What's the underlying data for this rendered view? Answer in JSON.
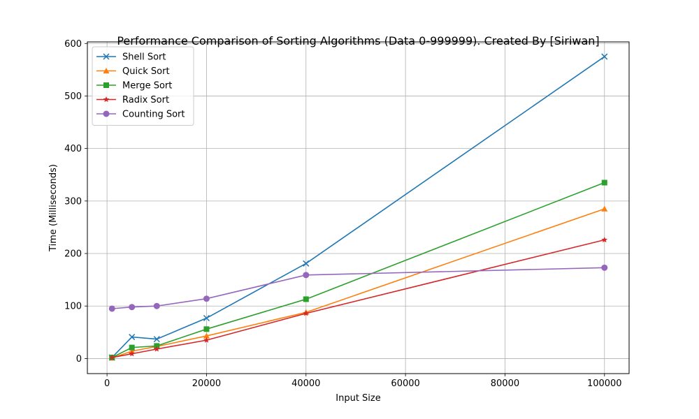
{
  "chart_data": {
    "type": "line",
    "title": "Performance Comparison of Sorting Algorithms (Data 0-999999). Created By [Siriwan]",
    "xlabel": "Input Size",
    "ylabel": "Time (Milliseconds)",
    "xlim": [
      -3950,
      104950
    ],
    "ylim": [
      -28.7,
      603
    ],
    "x_ticks": [
      0,
      20000,
      40000,
      60000,
      80000,
      100000
    ],
    "x_tick_labels": [
      "0",
      "20000",
      "40000",
      "60000",
      "80000",
      "100000"
    ],
    "y_ticks": [
      0,
      100,
      200,
      300,
      400,
      500,
      600
    ],
    "y_tick_labels": [
      "0",
      "100",
      "200",
      "300",
      "400",
      "500",
      "600"
    ],
    "grid": true,
    "legend_position": "top-left",
    "x": [
      1000,
      5000,
      10000,
      20000,
      40000,
      100000
    ],
    "series": [
      {
        "name": "Shell Sort",
        "color": "#1f77b4",
        "marker": "x",
        "values": [
          2,
          41,
          37,
          77,
          181,
          575
        ]
      },
      {
        "name": "Quick Sort",
        "color": "#ff7f0e",
        "marker": "triangle",
        "values": [
          1,
          14,
          23,
          43,
          88,
          285
        ]
      },
      {
        "name": "Merge Sort",
        "color": "#2ca02c",
        "marker": "square",
        "values": [
          2,
          21,
          24,
          56,
          113,
          335
        ]
      },
      {
        "name": "Radix Sort",
        "color": "#d62728",
        "marker": "star",
        "values": [
          2,
          9,
          18,
          35,
          86,
          226
        ]
      },
      {
        "name": "Counting Sort",
        "color": "#9467bd",
        "marker": "circle",
        "values": [
          95,
          98,
          100,
          114,
          159,
          173
        ]
      }
    ]
  }
}
